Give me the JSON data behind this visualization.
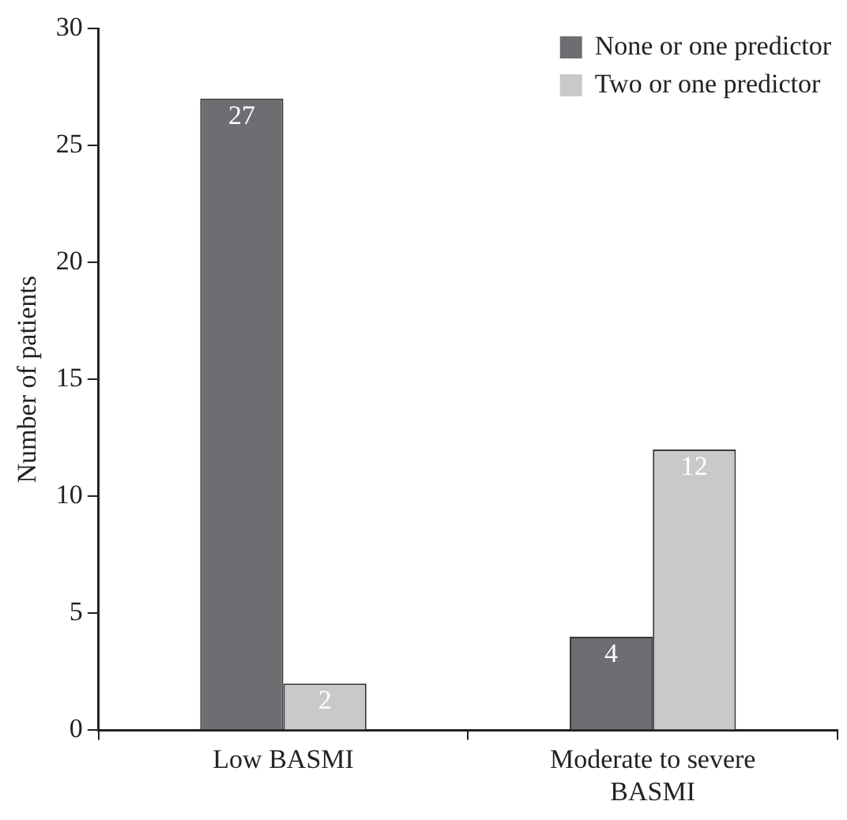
{
  "chart_data": {
    "type": "bar",
    "ylabel": "Number of patients",
    "categories": [
      "Low BASMI",
      "Moderate to severe BASMI"
    ],
    "series": [
      {
        "name": "None or one predictor",
        "color": "#6d6e71",
        "values": [
          27,
          4
        ]
      },
      {
        "name": "Two or one predictor",
        "color": "#c8c9cb",
        "values": [
          2,
          12
        ]
      }
    ],
    "ylim": [
      0,
      30
    ],
    "yticks": [
      0,
      5,
      10,
      15,
      20,
      25,
      30
    ],
    "grid": false,
    "legend": "top right",
    "data_labels": true
  }
}
